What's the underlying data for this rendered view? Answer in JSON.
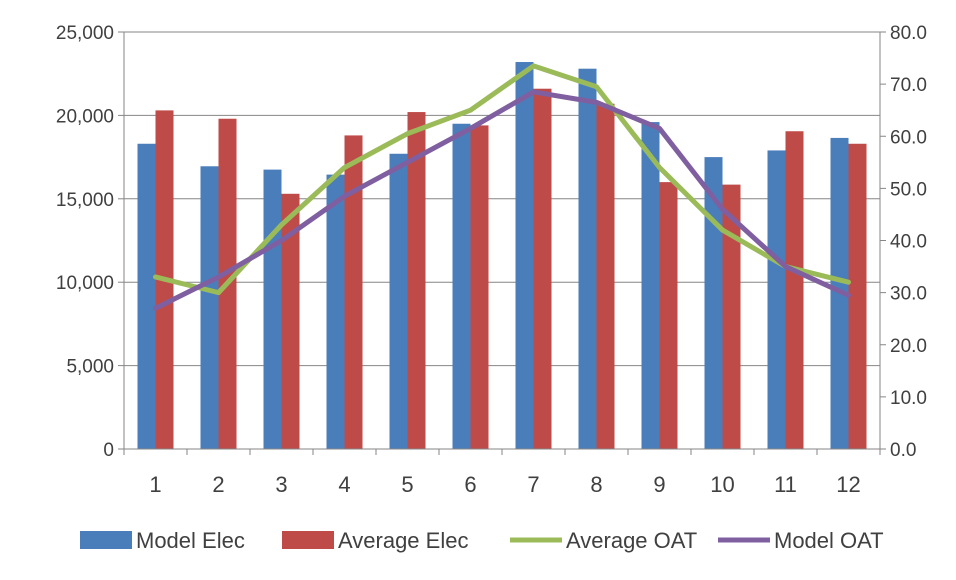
{
  "chart_data": {
    "type": "bar",
    "categories": [
      "1",
      "2",
      "3",
      "4",
      "5",
      "6",
      "7",
      "8",
      "9",
      "10",
      "11",
      "12"
    ],
    "series": [
      {
        "name": "Model Elec",
        "kind": "bar",
        "axis": "left",
        "color": "#4A7EBB",
        "values": [
          18300,
          16950,
          16750,
          16450,
          17700,
          19500,
          23200,
          22800,
          19600,
          17500,
          17900,
          18650
        ]
      },
      {
        "name": "Average Elec",
        "kind": "bar",
        "axis": "left",
        "color": "#BE4B48",
        "values": [
          20300,
          19800,
          15300,
          18800,
          20200,
          19400,
          21600,
          20700,
          16000,
          15850,
          19050,
          18300
        ]
      },
      {
        "name": "Average OAT",
        "kind": "line",
        "axis": "right",
        "color": "#9BBB59",
        "values": [
          33.0,
          30.0,
          43.0,
          54.0,
          60.5,
          65.0,
          73.5,
          69.5,
          54.0,
          42.0,
          35.0,
          32.0
        ]
      },
      {
        "name": "Model OAT",
        "kind": "line",
        "axis": "right",
        "color": "#7F5FA0",
        "values": [
          27.0,
          33.0,
          40.0,
          48.5,
          55.0,
          61.5,
          68.5,
          66.5,
          61.5,
          46.0,
          35.0,
          29.5
        ]
      }
    ],
    "ylim_left": [
      0,
      25000
    ],
    "ylim_right": [
      0,
      80
    ],
    "yticks_left": [
      "0",
      "5,000",
      "10,000",
      "15,000",
      "20,000",
      "25,000"
    ],
    "yticks_right": [
      "0.0",
      "10.0",
      "20.0",
      "30.0",
      "40.0",
      "50.0",
      "60.0",
      "70.0",
      "80.0"
    ],
    "grid": true,
    "legend_position": "bottom"
  }
}
